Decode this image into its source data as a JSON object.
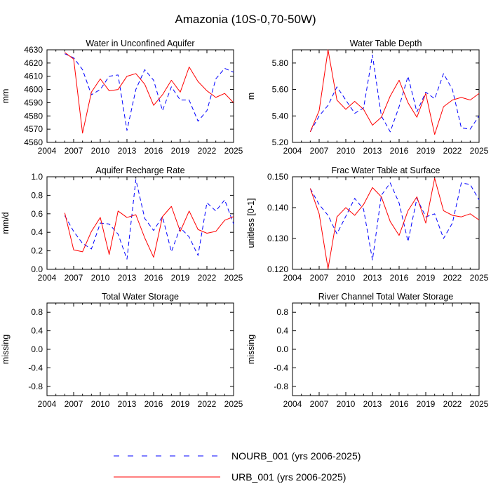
{
  "figure_title": "Amazonia (10S-0,70-50W)",
  "legend": {
    "nourb": "NOURB_001 (yrs 2006-2025)",
    "urb": "URB_001 (yrs 2006-2025)"
  },
  "colors": {
    "nourb": "#0000ff",
    "urb": "#ff0000"
  },
  "chart_data": [
    {
      "type": "line",
      "title": "Water in Unconfined Aquifer",
      "ylabel": "mm",
      "xlim": [
        2004,
        2025
      ],
      "ylim": [
        4560,
        4630
      ],
      "xticks": [
        2004,
        2007,
        2010,
        2013,
        2016,
        2019,
        2022,
        2025
      ],
      "yticks": [
        4560,
        4570,
        4580,
        4590,
        4600,
        4610,
        4620,
        4630
      ],
      "ytick_labels": [
        "4560",
        "4570",
        "4580",
        "4590",
        "4600",
        "4610",
        "4620",
        "4630"
      ],
      "x": [
        2006,
        2007,
        2008,
        2009,
        2010,
        2011,
        2012,
        2013,
        2014,
        2015,
        2016,
        2017,
        2018,
        2019,
        2020,
        2021,
        2022,
        2023,
        2024,
        2025
      ],
      "series": [
        {
          "name": "NOURB_001",
          "style": "dashed",
          "values": [
            4627,
            4624,
            4615,
            4596,
            4600,
            4610,
            4611,
            4569,
            4600,
            4615,
            4607,
            4584,
            4602,
            4592,
            4592,
            4576,
            4584,
            4608,
            4616,
            4613
          ]
        },
        {
          "name": "URB_001",
          "style": "solid",
          "values": [
            4628,
            4623,
            4567,
            4598,
            4608,
            4599,
            4600,
            4610,
            4612,
            4604,
            4588,
            4596,
            4607,
            4598,
            4617,
            4606,
            4599,
            4594,
            4597,
            4590
          ]
        }
      ]
    },
    {
      "type": "line",
      "title": "Water Table Depth",
      "ylabel": "m",
      "xlim": [
        2004,
        2025
      ],
      "ylim": [
        5.2,
        5.9
      ],
      "xticks": [
        2004,
        2007,
        2010,
        2013,
        2016,
        2019,
        2022,
        2025
      ],
      "yticks": [
        5.2,
        5.4,
        5.6,
        5.8
      ],
      "ytick_labels": [
        "5.20",
        "5.40",
        "5.60",
        "5.80"
      ],
      "x": [
        2006,
        2007,
        2008,
        2009,
        2010,
        2011,
        2012,
        2013,
        2014,
        2015,
        2016,
        2017,
        2018,
        2019,
        2020,
        2021,
        2022,
        2023,
        2024,
        2025
      ],
      "series": [
        {
          "name": "NOURB_001",
          "style": "dashed",
          "values": [
            5.28,
            5.4,
            5.48,
            5.62,
            5.52,
            5.42,
            5.46,
            5.86,
            5.4,
            5.28,
            5.47,
            5.7,
            5.43,
            5.58,
            5.53,
            5.72,
            5.6,
            5.31,
            5.3,
            5.4
          ]
        },
        {
          "name": "URB_001",
          "style": "solid",
          "values": [
            5.28,
            5.44,
            5.9,
            5.52,
            5.45,
            5.51,
            5.45,
            5.33,
            5.39,
            5.55,
            5.67,
            5.5,
            5.39,
            5.57,
            5.26,
            5.47,
            5.52,
            5.54,
            5.52,
            5.57
          ]
        }
      ]
    },
    {
      "type": "line",
      "title": "Aquifer Recharge Rate",
      "ylabel": "mm/d",
      "xlim": [
        2004,
        2025
      ],
      "ylim": [
        0.0,
        1.0
      ],
      "xticks": [
        2004,
        2007,
        2010,
        2013,
        2016,
        2019,
        2022,
        2025
      ],
      "yticks": [
        0.0,
        0.2,
        0.4,
        0.6,
        0.8,
        1.0
      ],
      "ytick_labels": [
        "0.0",
        "0.2",
        "0.4",
        "0.6",
        "0.8",
        "1.0"
      ],
      "x": [
        2006,
        2007,
        2008,
        2009,
        2010,
        2011,
        2012,
        2013,
        2014,
        2015,
        2016,
        2017,
        2018,
        2019,
        2020,
        2021,
        2022,
        2023,
        2024,
        2025
      ],
      "series": [
        {
          "name": "NOURB_001",
          "style": "dashed",
          "values": [
            0.58,
            0.41,
            0.28,
            0.22,
            0.5,
            0.49,
            0.38,
            0.11,
            0.97,
            0.55,
            0.42,
            0.57,
            0.19,
            0.45,
            0.35,
            0.15,
            0.72,
            0.63,
            0.75,
            0.49
          ]
        },
        {
          "name": "URB_001",
          "style": "solid",
          "values": [
            0.61,
            0.21,
            0.19,
            0.41,
            0.56,
            0.16,
            0.63,
            0.56,
            0.59,
            0.34,
            0.13,
            0.57,
            0.68,
            0.41,
            0.63,
            0.43,
            0.39,
            0.41,
            0.53,
            0.57
          ]
        }
      ]
    },
    {
      "type": "line",
      "title": "Frac Water Table at Surface",
      "ylabel": "unitless [0-1]",
      "xlim": [
        2004,
        2025
      ],
      "ylim": [
        0.12,
        0.15
      ],
      "xticks": [
        2004,
        2007,
        2010,
        2013,
        2016,
        2019,
        2022,
        2025
      ],
      "yticks": [
        0.12,
        0.13,
        0.14,
        0.15
      ],
      "ytick_labels": [
        "0.120",
        "0.130",
        "0.140",
        "0.150"
      ],
      "x": [
        2006,
        2007,
        2008,
        2009,
        2010,
        2011,
        2012,
        2013,
        2014,
        2015,
        2016,
        2017,
        2018,
        2019,
        2020,
        2021,
        2022,
        2023,
        2024,
        2025
      ],
      "series": [
        {
          "name": "NOURB_001",
          "style": "dashed",
          "values": [
            0.1462,
            0.141,
            0.1375,
            0.1315,
            0.1372,
            0.143,
            0.1395,
            0.123,
            0.144,
            0.148,
            0.1415,
            0.129,
            0.143,
            0.137,
            0.138,
            0.13,
            0.135,
            0.148,
            0.1475,
            0.1425
          ]
        },
        {
          "name": "URB_001",
          "style": "solid",
          "values": [
            0.1462,
            0.138,
            0.1202,
            0.137,
            0.14,
            0.1375,
            0.141,
            0.1465,
            0.1435,
            0.1355,
            0.131,
            0.139,
            0.1435,
            0.135,
            0.1495,
            0.139,
            0.1375,
            0.137,
            0.138,
            0.136
          ]
        }
      ]
    },
    {
      "type": "line",
      "title": "Total Water Storage",
      "ylabel": "missing",
      "xlim": [
        2004,
        2025
      ],
      "ylim": [
        -1.0,
        1.0
      ],
      "xticks": [
        2004,
        2007,
        2010,
        2013,
        2016,
        2019,
        2022,
        2025
      ],
      "yticks": [
        -0.8,
        -0.4,
        0.0,
        0.4,
        0.8
      ],
      "ytick_labels": [
        "-0.8",
        "-0.4",
        "0.0",
        "0.4",
        "0.8"
      ],
      "x": [],
      "series": []
    },
    {
      "type": "line",
      "title": "River Channel Total Water Storage",
      "ylabel": "missing",
      "xlim": [
        2004,
        2025
      ],
      "ylim": [
        -1.0,
        1.0
      ],
      "xticks": [
        2004,
        2007,
        2010,
        2013,
        2016,
        2019,
        2022,
        2025
      ],
      "yticks": [
        -0.8,
        -0.4,
        0.0,
        0.4,
        0.8
      ],
      "ytick_labels": [
        "-0.8",
        "-0.4",
        "0.0",
        "0.4",
        "0.8"
      ],
      "x": [],
      "series": []
    }
  ]
}
